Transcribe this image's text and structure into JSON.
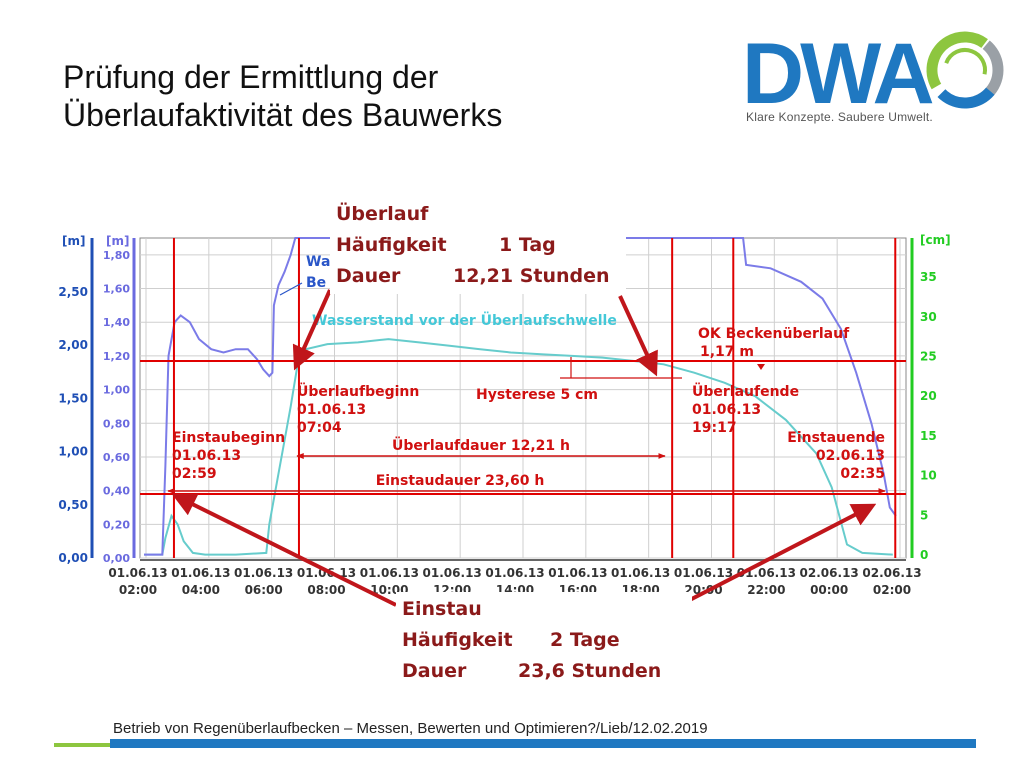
{
  "slide": {
    "title_line1": "Prüfung der Ermittlung der",
    "title_line2": "Überlaufaktivität des Bauwerks",
    "logo_text": "DWA",
    "logo_tagline": "Klare Konzepte. Saubere Umwelt.",
    "footer": "Betrieb von Regenüberlaufbecken – Messen, Bewerten und Optimieren?/Lieb/12.02.2019",
    "colors": {
      "logo_blue": "#1f78c1",
      "logo_green": "#8dc63f",
      "callout_text": "#8b1a1a",
      "arrow": "#c0161b"
    }
  },
  "callouts": {
    "overflow": {
      "title": "Überlauf",
      "freq_label": "Häufigkeit",
      "freq_value": "1 Tag",
      "dur_label": "Dauer",
      "dur_value": "12,21 Stunden"
    },
    "impoundment": {
      "title": "Einstau",
      "freq_label": "Häufigkeit",
      "freq_value": "2 Tage",
      "dur_label": "Dauer",
      "dur_value": "23,6 Stunden"
    }
  },
  "chart_data": {
    "type": "line",
    "axes": {
      "left_outer": {
        "unit": "[m]",
        "ticks": [
          "0,00",
          "0,50",
          "1,00",
          "1,50",
          "2,00",
          "2,50"
        ],
        "color": "#1f4fb5"
      },
      "left_inner": {
        "unit": "[m]",
        "ticks": [
          "0,00",
          "0,20",
          "0,40",
          "0,60",
          "0,80",
          "1,00",
          "1,20",
          "1,40",
          "1,60",
          "1,80"
        ],
        "color": "#6a6adf"
      },
      "right": {
        "unit": "[cm]",
        "ticks": [
          "0",
          "5",
          "10",
          "15",
          "20",
          "25",
          "30",
          "35"
        ],
        "color": "#22cc22"
      },
      "x_ticks": [
        [
          "01.06.13",
          "02:00"
        ],
        [
          "01.06.13",
          "04:00"
        ],
        [
          "01.06.13",
          "06:00"
        ],
        [
          "01.06.13",
          "08:00"
        ],
        [
          "01.06.13",
          "10:00"
        ],
        [
          "01.06.13",
          "12:00"
        ],
        [
          "01.06.13",
          "14:00"
        ],
        [
          "01.06.13",
          "16:00"
        ],
        [
          "01.06.13",
          "18:00"
        ],
        [
          "01.06.13",
          "20:00"
        ],
        [
          "01.06.13",
          "22:00"
        ],
        [
          "02.06.13",
          "00:00"
        ],
        [
          "02.06.13",
          "02:00"
        ]
      ],
      "x_range_hours": [
        0,
        24.8
      ],
      "y_range_m": [
        0,
        1.9
      ]
    },
    "series": [
      {
        "name": "Wasserstand vor der Überlaufschwelle",
        "color": "#66cccc",
        "points": [
          [
            0,
            0.02
          ],
          [
            0.6,
            0.02
          ],
          [
            0.7,
            0.12
          ],
          [
            0.9,
            0.25
          ],
          [
            1.1,
            0.2
          ],
          [
            1.3,
            0.1
          ],
          [
            1.6,
            0.03
          ],
          [
            2.0,
            0.02
          ],
          [
            3.0,
            0.02
          ],
          [
            4.0,
            0.03
          ],
          [
            4.1,
            0.2
          ],
          [
            4.3,
            0.4
          ],
          [
            4.6,
            0.7
          ],
          [
            4.8,
            0.9
          ],
          [
            5.07,
            1.2
          ],
          [
            5.3,
            1.24
          ],
          [
            6.0,
            1.27
          ],
          [
            7.0,
            1.28
          ],
          [
            8.0,
            1.3
          ],
          [
            9.0,
            1.28
          ],
          [
            10.0,
            1.26
          ],
          [
            11.0,
            1.24
          ],
          [
            12.0,
            1.22
          ],
          [
            13.0,
            1.21
          ],
          [
            14.0,
            1.2
          ],
          [
            15.0,
            1.19
          ],
          [
            16.0,
            1.17
          ],
          [
            17.0,
            1.15
          ],
          [
            18.0,
            1.1
          ],
          [
            19.0,
            1.04
          ],
          [
            20.0,
            0.96
          ],
          [
            21.0,
            0.82
          ],
          [
            22.0,
            0.62
          ],
          [
            22.5,
            0.42
          ],
          [
            23.0,
            0.08
          ],
          [
            23.5,
            0.03
          ],
          [
            24.5,
            0.02
          ]
        ]
      },
      {
        "name": "Wa / Be",
        "color": "#7b7be8",
        "points": [
          [
            0,
            0.02
          ],
          [
            0.6,
            0.02
          ],
          [
            0.7,
            0.55
          ],
          [
            0.8,
            1.2
          ],
          [
            1.0,
            1.4
          ],
          [
            1.2,
            1.44
          ],
          [
            1.5,
            1.4
          ],
          [
            1.8,
            1.3
          ],
          [
            2.2,
            1.24
          ],
          [
            2.6,
            1.22
          ],
          [
            3.0,
            1.24
          ],
          [
            3.4,
            1.24
          ],
          [
            3.7,
            1.18
          ],
          [
            3.9,
            1.12
          ],
          [
            4.1,
            1.08
          ],
          [
            4.2,
            1.1
          ],
          [
            4.25,
            1.5
          ],
          [
            4.4,
            1.62
          ],
          [
            4.6,
            1.7
          ],
          [
            4.8,
            1.8
          ],
          [
            4.95,
            1.9
          ],
          [
            19.6,
            1.9
          ],
          [
            19.7,
            1.74
          ],
          [
            20.5,
            1.72
          ],
          [
            21.5,
            1.64
          ],
          [
            22.2,
            1.54
          ],
          [
            22.8,
            1.36
          ],
          [
            23.3,
            1.1
          ],
          [
            23.8,
            0.8
          ],
          [
            24.2,
            0.5
          ],
          [
            24.4,
            0.3
          ],
          [
            24.6,
            0.25
          ]
        ]
      }
    ],
    "vertical_lines_hours": [
      0.98,
      5.07,
      17.28,
      19.28,
      24.58
    ],
    "horizontal_lines": [
      {
        "label": "OK Beckenüberlauf",
        "value_label": "1,17 m",
        "y_m": 1.17
      },
      {
        "label": "",
        "value_label": "",
        "y_m": 0.38
      }
    ],
    "annotations": {
      "einstaubeginn": {
        "label": "Einstaubeginn",
        "date": "01.06.13",
        "time": "02:59"
      },
      "ueberlaufbeginn": {
        "label": "Überlaufbeginn",
        "date": "01.06.13",
        "time": "07:04"
      },
      "ueberlaufende": {
        "label": "Überlaufende",
        "date": "01.06.13",
        "time": "19:17"
      },
      "einstauende": {
        "label": "Einstauende",
        "date": "02.06.13",
        "time": "02:35"
      },
      "ueberlaufdauer": "Überlaufdauer 12,21 h",
      "einstaudauer": "Einstaudauer 23,60 h",
      "hysterese": "Hysterese 5 cm",
      "series_label": "Wasserstand vor der Überlaufschwelle",
      "legend_fragments": [
        "Wa",
        "Be"
      ]
    },
    "grid": true
  }
}
